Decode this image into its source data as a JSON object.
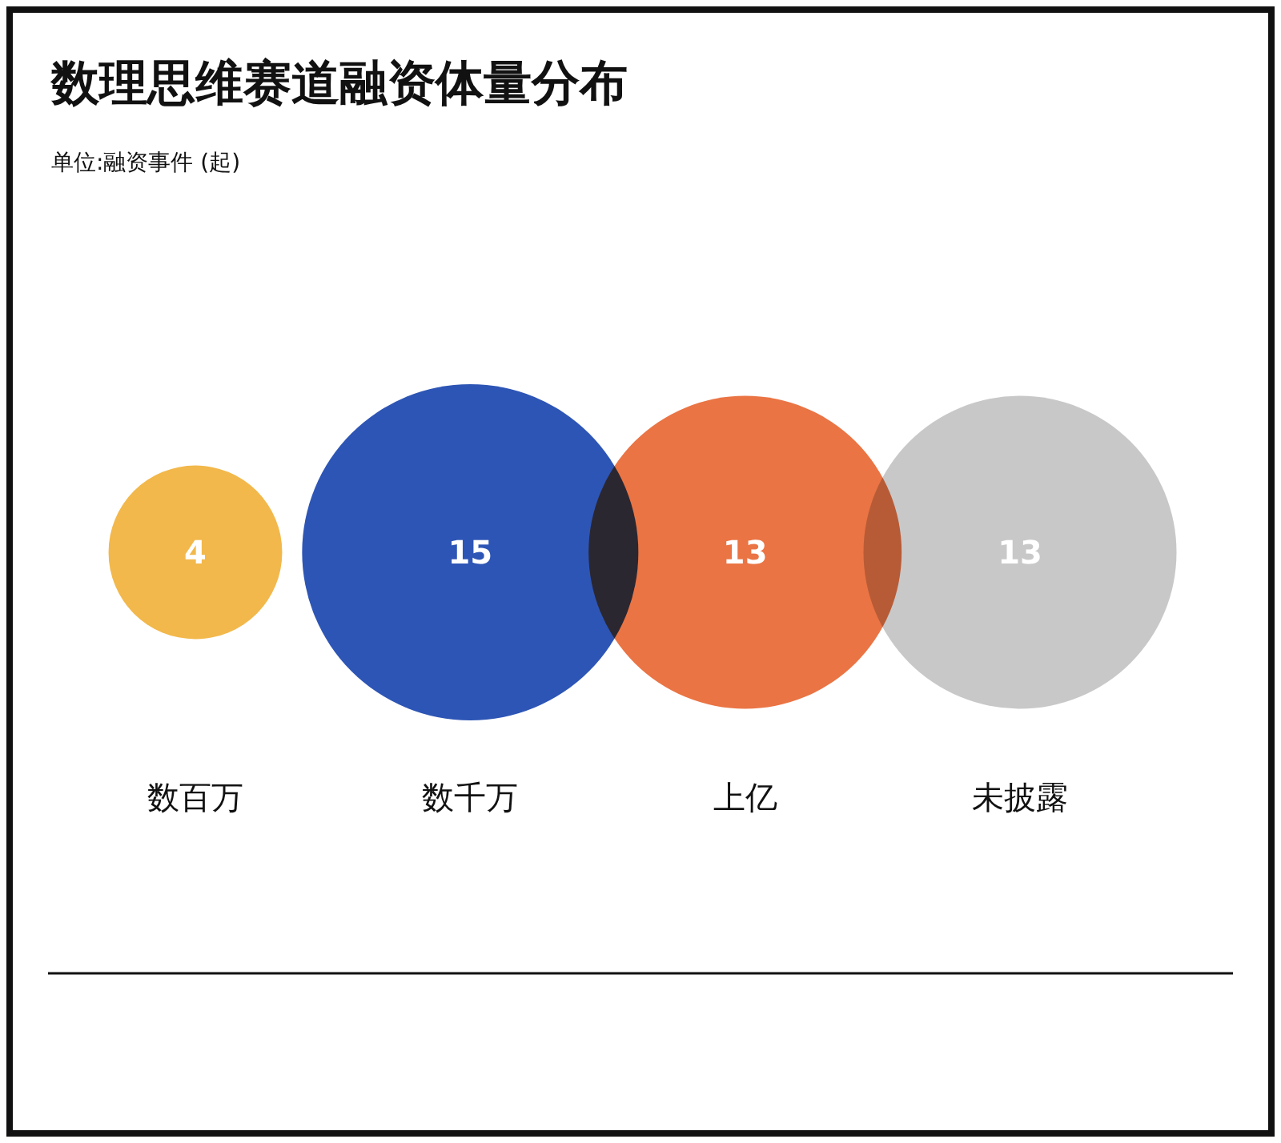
{
  "chart_data": {
    "type": "other",
    "title": "数理思维赛道融资体量分布",
    "subtitle": "单位:融资事件 (起)",
    "categories": [
      "数百万",
      "数千万",
      "上亿",
      "未披露"
    ],
    "values": [
      4,
      15,
      13,
      13
    ],
    "colors": [
      "#f2b84b",
      "#2d55b5",
      "#ea7444",
      "#c8c8c8"
    ],
    "data_labels": true
  }
}
